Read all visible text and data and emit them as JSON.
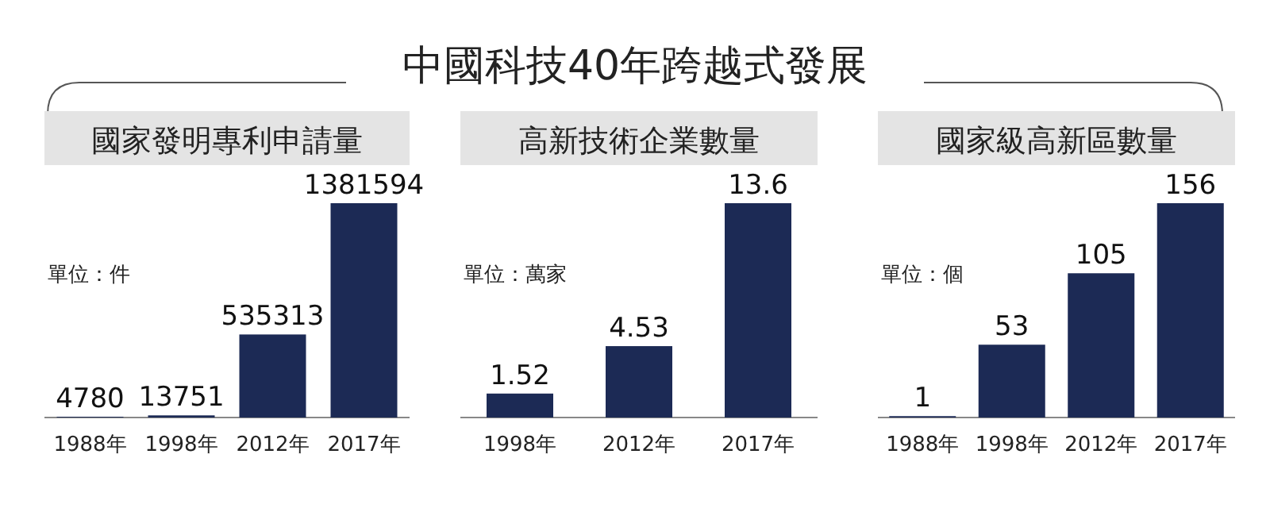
{
  "chart_data": [
    {
      "type": "other",
      "title": "中國科技40年跨越式發展"
    },
    {
      "type": "bar",
      "title": "國家發明專利申請量",
      "ylabel": "單位：件",
      "categories": [
        "1988年",
        "1998年",
        "2012年",
        "2017年"
      ],
      "values": [
        4780,
        13751,
        535313,
        1381594
      ],
      "color": "#1c2a55",
      "data_labels": true
    },
    {
      "type": "bar",
      "title": "高新技術企業數量",
      "ylabel": "單位：萬家",
      "categories": [
        "1998年",
        "2012年",
        "2017年"
      ],
      "values": [
        1.52,
        4.53,
        13.6
      ],
      "color": "#1c2a55",
      "data_labels": true
    },
    {
      "type": "bar",
      "title": "國家級高新區數量",
      "ylabel": "單位：個",
      "categories": [
        "1988年",
        "1998年",
        "2012年",
        "2017年"
      ],
      "values": [
        1,
        53,
        105,
        156
      ],
      "color": "#1c2a55",
      "data_labels": true
    }
  ]
}
